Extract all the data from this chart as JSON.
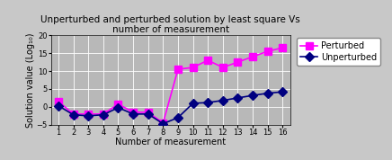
{
  "title": "Unperturbed and perturbed solution by least square Vs\nnumber of measurement",
  "xlabel": "Number of measurement",
  "ylabel": "Solution value (Log₁₀)",
  "xlim": [
    0.5,
    16.5
  ],
  "ylim": [
    -5,
    20
  ],
  "yticks": [
    -5,
    0,
    5,
    10,
    15,
    20
  ],
  "xticks": [
    1,
    2,
    3,
    4,
    5,
    6,
    7,
    8,
    9,
    10,
    11,
    12,
    13,
    14,
    15,
    16
  ],
  "perturbed_x": [
    1,
    2,
    3,
    4,
    5,
    6,
    7,
    8,
    9,
    10,
    11,
    12,
    13,
    14,
    15,
    16
  ],
  "perturbed_y": [
    1.5,
    -2.0,
    -2.0,
    -2.0,
    0.8,
    -1.5,
    -1.5,
    -4.5,
    10.5,
    11.0,
    13.0,
    11.0,
    12.5,
    14.0,
    15.5,
    16.5
  ],
  "unperturbed_x": [
    1,
    2,
    3,
    4,
    5,
    6,
    7,
    8,
    9,
    10,
    11,
    12,
    13,
    14,
    15,
    16
  ],
  "unperturbed_y": [
    0.3,
    -2.2,
    -2.5,
    -2.2,
    -0.2,
    -2.0,
    -2.0,
    -4.7,
    -3.0,
    1.0,
    1.2,
    1.8,
    2.5,
    3.2,
    3.8,
    4.2
  ],
  "perturbed_color": "#FF00FF",
  "unperturbed_color": "#000080",
  "bg_color": "#C8C8C8",
  "plot_bg_color": "#B8B8B8",
  "title_fontsize": 7.5,
  "axis_label_fontsize": 7,
  "tick_fontsize": 6,
  "legend_fontsize": 7,
  "figsize": [
    4.36,
    1.78
  ],
  "dpi": 100
}
